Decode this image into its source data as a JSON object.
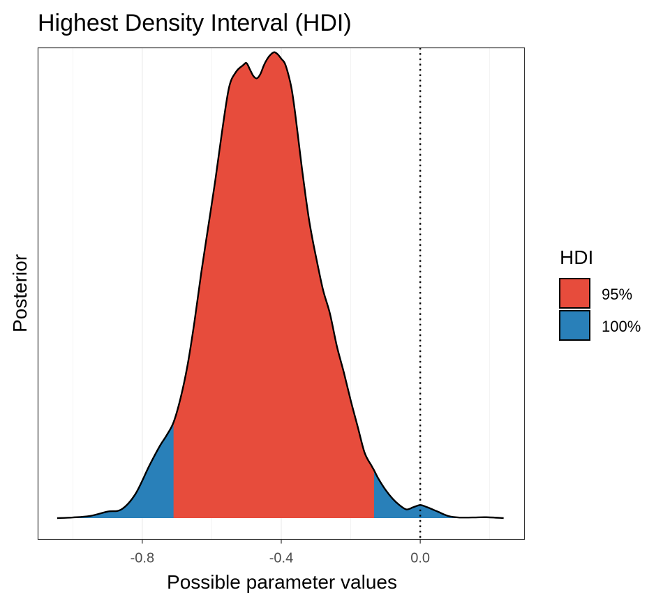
{
  "chart_data": {
    "type": "area",
    "title": "Highest Density Interval (HDI)",
    "xlabel": "Possible parameter values",
    "ylabel": "Posterior",
    "xlim": [
      -1.1,
      0.3
    ],
    "ylim": [
      0,
      2.16
    ],
    "x_ticks": [
      -0.8,
      -0.4,
      0.0
    ],
    "x_tick_labels": [
      "-0.8",
      "-0.4",
      "0.0"
    ],
    "reference_line": {
      "x": 0.0,
      "style": "dotted"
    },
    "grid": "vertical minor/major lines, light",
    "legend": {
      "title": "HDI",
      "position": "right",
      "entries": [
        {
          "label": "95%",
          "color": "#e74c3c"
        },
        {
          "label": "100%",
          "color": "#2980b9"
        }
      ]
    },
    "series": [
      {
        "name": "95%",
        "range": [
          -0.71,
          -0.133
        ],
        "color": "#e74c3c"
      },
      {
        "name": "100%",
        "range": [
          -1.045,
          0.24
        ],
        "color": "#2980b9"
      }
    ],
    "density": {
      "x": [
        -1.045,
        -1.0,
        -0.95,
        -0.9,
        -0.86,
        -0.82,
        -0.78,
        -0.75,
        -0.73,
        -0.71,
        -0.69,
        -0.67,
        -0.65,
        -0.63,
        -0.61,
        -0.59,
        -0.57,
        -0.55,
        -0.53,
        -0.51,
        -0.5,
        -0.49,
        -0.48,
        -0.47,
        -0.46,
        -0.45,
        -0.44,
        -0.43,
        -0.42,
        -0.41,
        -0.4,
        -0.39,
        -0.38,
        -0.37,
        -0.36,
        -0.35,
        -0.34,
        -0.33,
        -0.32,
        -0.31,
        -0.3,
        -0.28,
        -0.26,
        -0.24,
        -0.22,
        -0.2,
        -0.18,
        -0.16,
        -0.14,
        -0.133,
        -0.12,
        -0.1,
        -0.08,
        -0.06,
        -0.04,
        -0.02,
        0.0,
        0.02,
        0.05,
        0.08,
        0.11,
        0.15,
        0.19,
        0.24
      ],
      "y": [
        0.0,
        0.003,
        0.01,
        0.03,
        0.04,
        0.11,
        0.24,
        0.33,
        0.38,
        0.44,
        0.55,
        0.7,
        0.9,
        1.13,
        1.34,
        1.55,
        1.78,
        1.98,
        2.05,
        2.08,
        2.09,
        2.06,
        2.03,
        2.02,
        2.04,
        2.08,
        2.11,
        2.13,
        2.14,
        2.13,
        2.11,
        2.09,
        2.04,
        1.97,
        1.86,
        1.73,
        1.6,
        1.48,
        1.37,
        1.28,
        1.2,
        1.05,
        0.94,
        0.79,
        0.67,
        0.54,
        0.42,
        0.3,
        0.24,
        0.22,
        0.18,
        0.13,
        0.09,
        0.06,
        0.04,
        0.05,
        0.06,
        0.05,
        0.03,
        0.01,
        0.003,
        0.003,
        0.004,
        0.0
      ]
    },
    "colors": {
      "hdi_95": "#e74c3c",
      "hdi_100": "#2980b9",
      "outline": "#000000",
      "grid": "#ebebeb",
      "panel_border": "#333333",
      "tick_text": "#4d4d4d"
    }
  }
}
